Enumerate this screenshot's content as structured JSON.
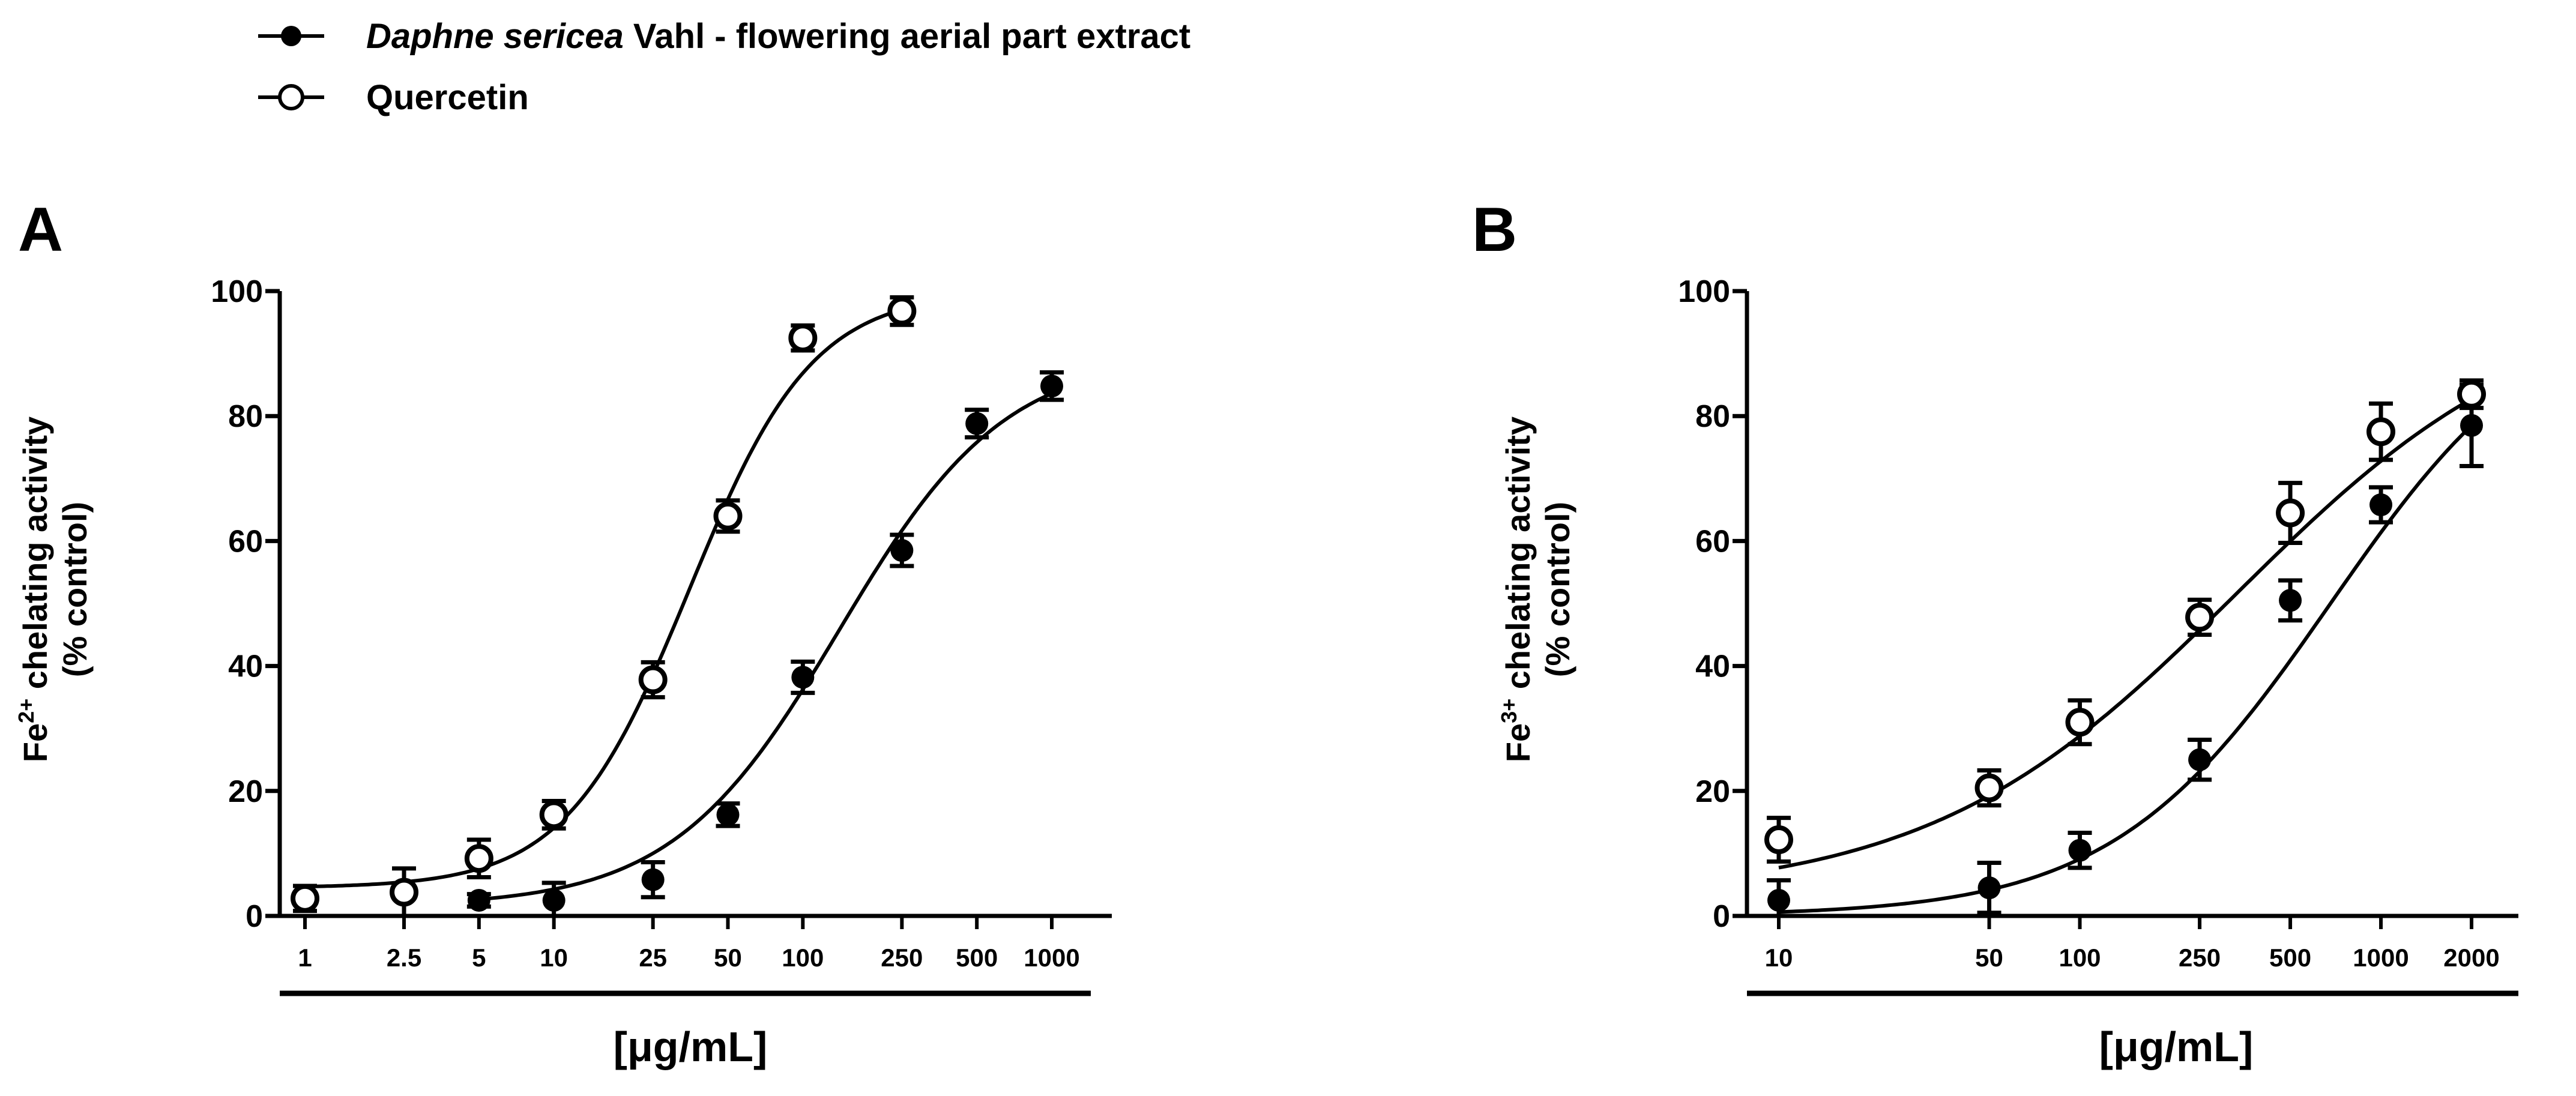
{
  "legend": {
    "series1": {
      "italic": "Daphne sericea",
      "rest": " Vahl - flowering aerial part extract"
    },
    "series2": {
      "label": "Quercetin"
    }
  },
  "chart_data": [
    {
      "type": "scatter",
      "panel": "A",
      "xscale": "log",
      "xlabel": "[μg/mL]",
      "ylabel_line1_pre": "Fe",
      "ylabel_line1_sup": "2+",
      "ylabel_line1_post": " chelating activity",
      "ylabel_line2": "(% control)",
      "xticks": [
        "1",
        "2.5",
        "5",
        "10",
        "25",
        "50",
        "100",
        "250",
        "500",
        "1000"
      ],
      "xtick_values": [
        1,
        2.5,
        5,
        10,
        25,
        50,
        100,
        250,
        500,
        1000
      ],
      "yticks": [
        "0",
        "20",
        "40",
        "60",
        "80",
        "100"
      ],
      "ylim": [
        0,
        100
      ],
      "series": [
        {
          "name": "Daphne sericea Vahl - flowering aerial part extract",
          "marker": "filled",
          "x": [
            5,
            10,
            25,
            50,
            100,
            250,
            500,
            1000
          ],
          "y": [
            2.5,
            2.5,
            5.8,
            16.2,
            38.2,
            58.5,
            78.8,
            84.8
          ],
          "err": [
            1.0,
            2.8,
            2.8,
            1.8,
            2.5,
            2.5,
            2.2,
            2.2
          ],
          "fit": {
            "bottom": 1.5,
            "top": 90,
            "ec50": 140,
            "hill": 1.3
          }
        },
        {
          "name": "Quercetin",
          "marker": "open",
          "x": [
            1,
            2.5,
            5,
            10,
            25,
            50,
            100,
            250
          ],
          "y": [
            2.8,
            3.8,
            9.2,
            16.2,
            37.8,
            64.0,
            92.5,
            96.8
          ],
          "err": [
            2.0,
            3.8,
            3.0,
            2.2,
            2.8,
            2.5,
            2.0,
            2.2
          ],
          "fit": {
            "bottom": 4.5,
            "top": 100,
            "ec50": 35,
            "hill": 1.75
          }
        }
      ]
    },
    {
      "type": "scatter",
      "panel": "B",
      "xscale": "log",
      "xlabel": "[μg/mL]",
      "ylabel_line1_pre": "Fe",
      "ylabel_line1_sup": "3+",
      "ylabel_line1_post": " chelating activity",
      "ylabel_line2": "(% control)",
      "xticks": [
        "10",
        "50",
        "100",
        "250",
        "500",
        "1000",
        "2000"
      ],
      "xtick_values": [
        10,
        50,
        100,
        250,
        500,
        1000,
        2000
      ],
      "yticks": [
        "0",
        "20",
        "40",
        "60",
        "80",
        "100"
      ],
      "ylim": [
        0,
        100
      ],
      "series": [
        {
          "name": "Daphne sericea Vahl - flowering aerial part extract",
          "marker": "filled",
          "x": [
            10,
            50,
            100,
            250,
            500,
            1000,
            2000
          ],
          "y": [
            2.5,
            4.5,
            10.5,
            25.0,
            50.5,
            65.8,
            78.5
          ],
          "err": [
            3.2,
            4.0,
            2.8,
            3.2,
            3.2,
            2.8,
            6.5
          ],
          "fit": {
            "bottom": 0,
            "top": 100,
            "ec50": 680,
            "hill": 1.2
          }
        },
        {
          "name": "Quercetin",
          "marker": "open",
          "x": [
            10,
            50,
            100,
            250,
            500,
            1000,
            2000
          ],
          "y": [
            12.2,
            20.5,
            31.0,
            47.8,
            64.5,
            77.5,
            83.5
          ],
          "err": [
            3.5,
            2.8,
            3.5,
            2.8,
            4.8,
            4.5,
            2.2
          ],
          "fit": {
            "bottom": 3,
            "top": 100,
            "ec50": 330,
            "hill": 0.85
          }
        }
      ]
    }
  ]
}
